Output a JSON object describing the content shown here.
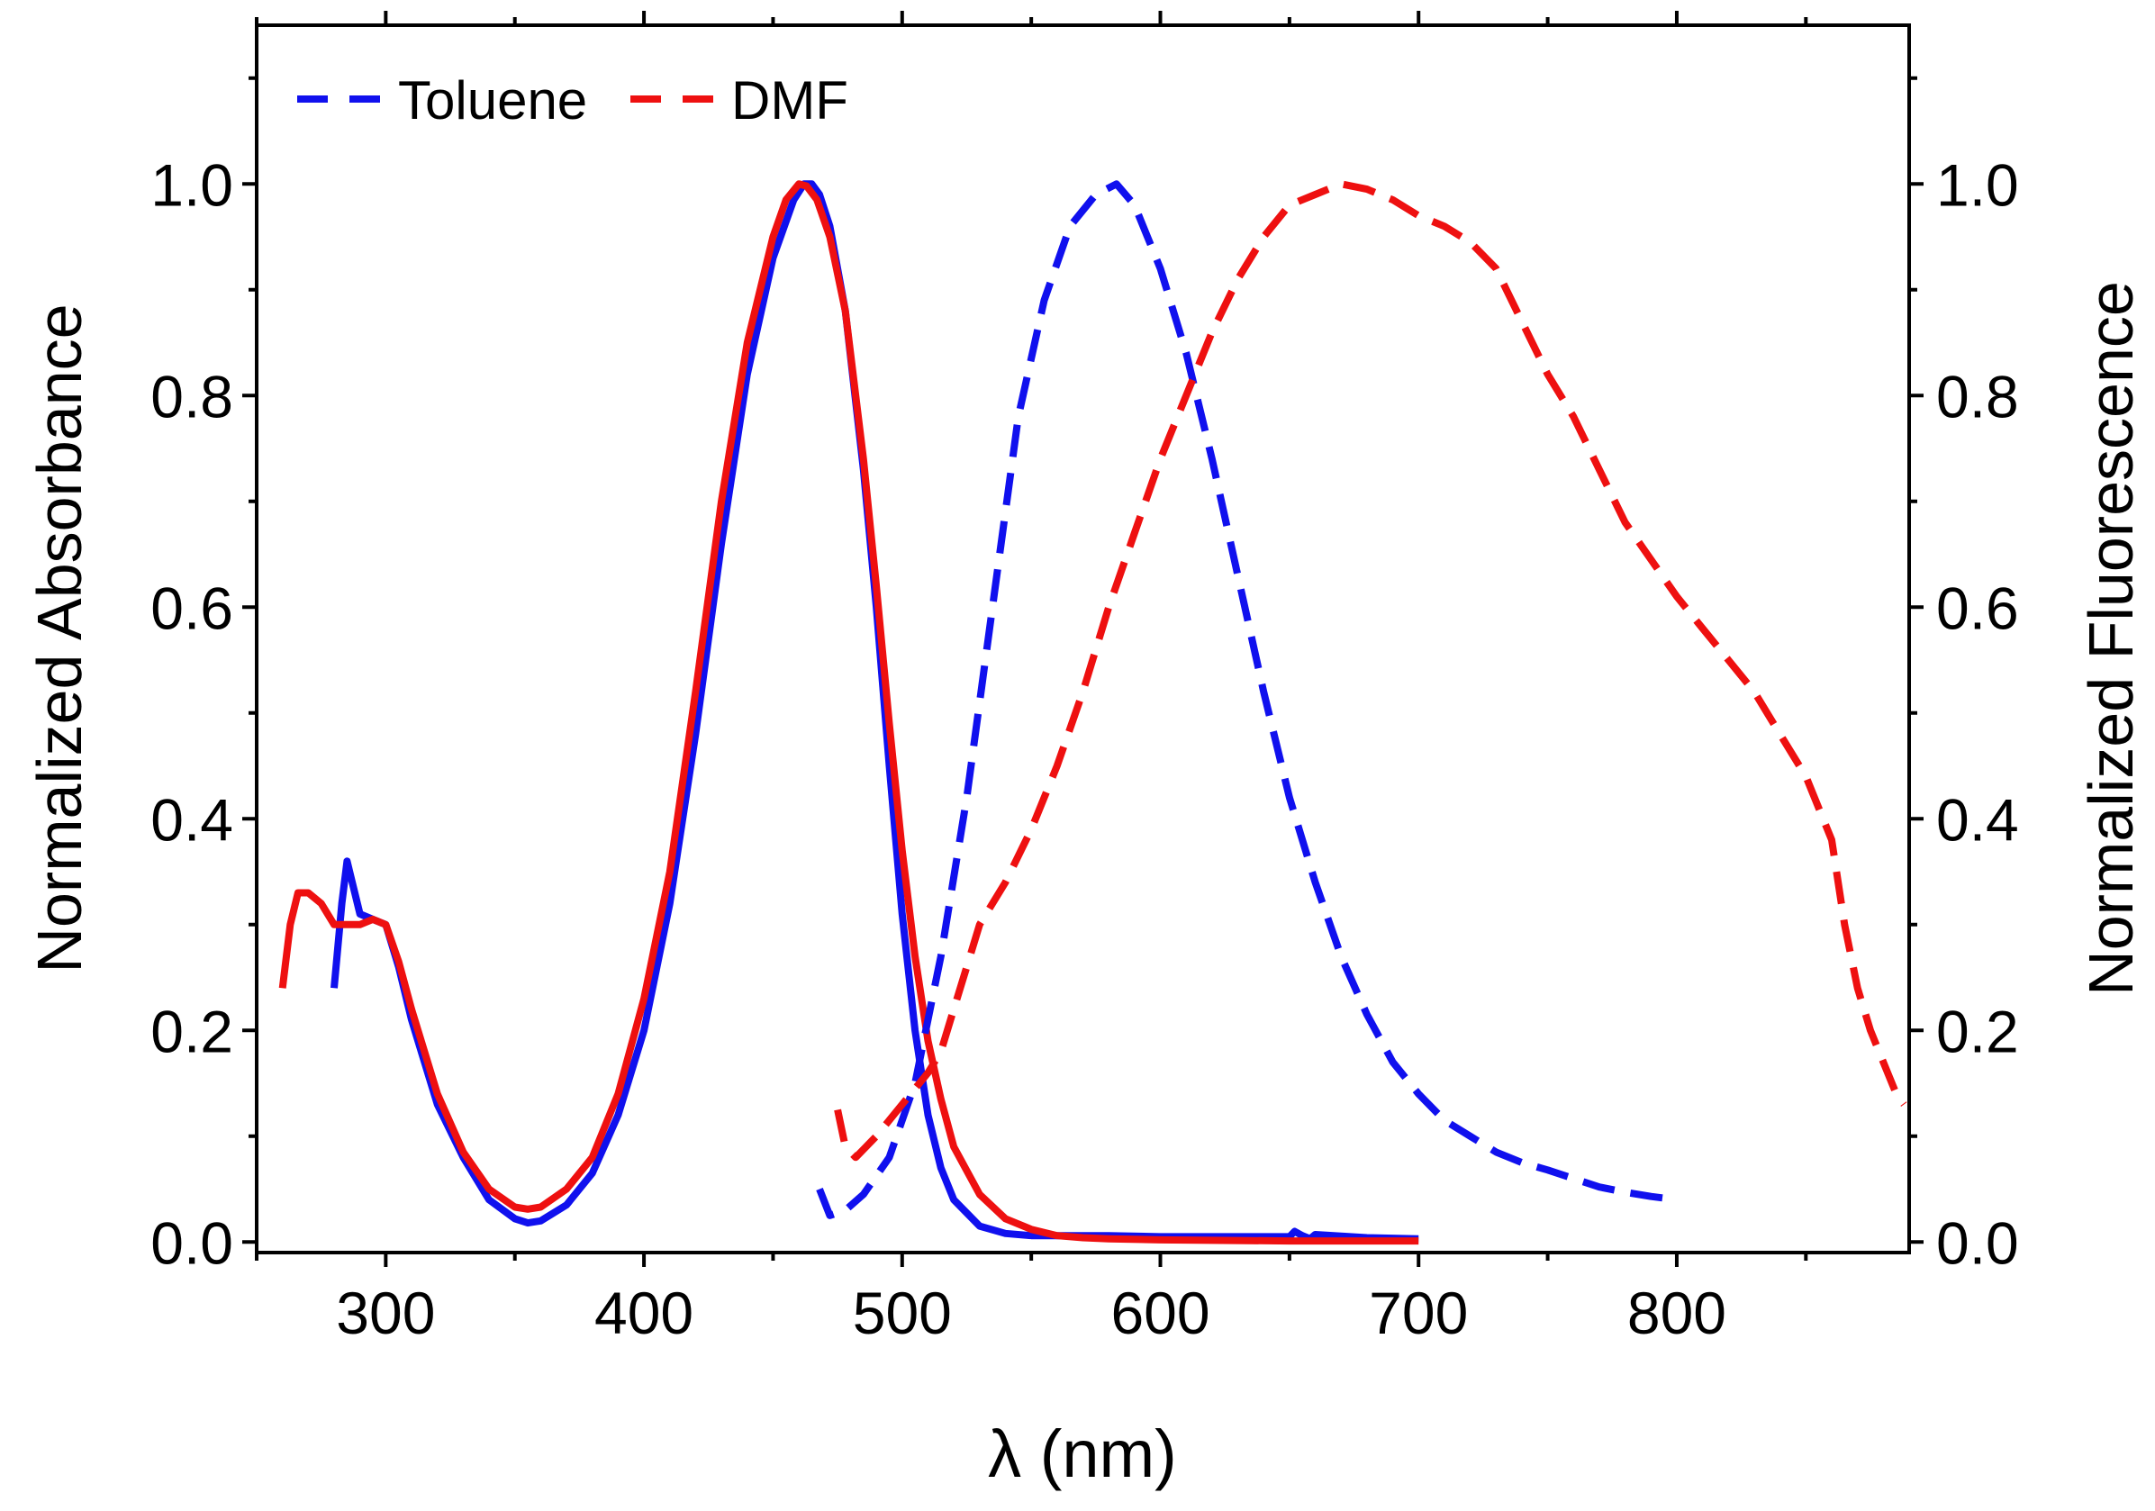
{
  "chart_data": {
    "type": "line",
    "title": "",
    "xlabel": "λ (nm)",
    "ylabel_left": "Normalized Absorbance",
    "ylabel_right": "Normalized Fluorescence",
    "xlim": [
      250,
      890
    ],
    "ylim": [
      -0.01,
      1.15
    ],
    "x_ticks": [
      300,
      400,
      500,
      600,
      700,
      800
    ],
    "y_ticks": [
      0.0,
      0.2,
      0.4,
      0.6,
      0.8,
      1.0
    ],
    "x_tick_labels": [
      "300",
      "400",
      "500",
      "600",
      "700",
      "800"
    ],
    "y_tick_labels_left": [
      "0.0",
      "0.2",
      "0.4",
      "0.6",
      "0.8",
      "1.0"
    ],
    "y_tick_labels_right": [
      "0.0",
      "0.2",
      "0.4",
      "0.6",
      "0.8",
      "1.0"
    ],
    "legend": {
      "position": "top-left",
      "entries": [
        {
          "label": "Toluene",
          "color": "#1010ee",
          "style": "dashed"
        },
        {
          "label": "DMF",
          "color": "#ee1010",
          "style": "dashed"
        }
      ]
    },
    "series": [
      {
        "name": "Toluene absorbance",
        "color": "#1010ee",
        "style": "solid",
        "axis": "left",
        "x": [
          280,
          283,
          285,
          287,
          290,
          295,
          300,
          305,
          310,
          320,
          330,
          340,
          350,
          355,
          360,
          370,
          380,
          390,
          400,
          410,
          420,
          430,
          440,
          450,
          458,
          462,
          465,
          468,
          472,
          478,
          485,
          490,
          495,
          500,
          505,
          510,
          515,
          520,
          530,
          540,
          550,
          560,
          580,
          600,
          620,
          650,
          652,
          655,
          658,
          660,
          680,
          700
        ],
        "y": [
          0.24,
          0.32,
          0.36,
          0.34,
          0.31,
          0.305,
          0.3,
          0.26,
          0.21,
          0.13,
          0.08,
          0.04,
          0.022,
          0.018,
          0.02,
          0.035,
          0.065,
          0.12,
          0.2,
          0.32,
          0.48,
          0.66,
          0.82,
          0.93,
          0.985,
          1.0,
          1.0,
          0.99,
          0.96,
          0.88,
          0.73,
          0.6,
          0.45,
          0.31,
          0.2,
          0.12,
          0.07,
          0.04,
          0.015,
          0.008,
          0.006,
          0.006,
          0.006,
          0.005,
          0.005,
          0.005,
          0.01,
          0.006,
          0.003,
          0.007,
          0.004,
          0.003
        ]
      },
      {
        "name": "DMF absorbance",
        "color": "#ee1010",
        "style": "solid",
        "axis": "left",
        "x": [
          260,
          263,
          266,
          270,
          275,
          280,
          290,
          295,
          300,
          305,
          310,
          320,
          330,
          340,
          350,
          355,
          360,
          370,
          380,
          390,
          400,
          410,
          420,
          430,
          440,
          450,
          455,
          460,
          463,
          467,
          472,
          478,
          485,
          490,
          495,
          500,
          505,
          510,
          515,
          520,
          530,
          540,
          550,
          560,
          570,
          580,
          600,
          650,
          700
        ],
        "y": [
          0.24,
          0.3,
          0.33,
          0.33,
          0.32,
          0.3,
          0.3,
          0.305,
          0.3,
          0.265,
          0.22,
          0.14,
          0.085,
          0.05,
          0.033,
          0.031,
          0.033,
          0.05,
          0.08,
          0.14,
          0.23,
          0.35,
          0.52,
          0.7,
          0.85,
          0.95,
          0.985,
          1.0,
          0.998,
          0.985,
          0.95,
          0.88,
          0.74,
          0.62,
          0.49,
          0.37,
          0.27,
          0.19,
          0.135,
          0.09,
          0.045,
          0.022,
          0.012,
          0.006,
          0.004,
          0.003,
          0.002,
          0.001,
          0.001
        ]
      },
      {
        "name": "Toluene fluorescence",
        "color": "#1010ee",
        "style": "dashed",
        "axis": "right",
        "x": [
          468,
          472,
          478,
          485,
          495,
          505,
          515,
          525,
          535,
          545,
          555,
          565,
          575,
          583,
          590,
          600,
          610,
          620,
          630,
          640,
          650,
          660,
          670,
          680,
          690,
          700,
          710,
          720,
          730,
          740,
          750,
          760,
          770,
          780,
          790,
          800
        ],
        "y": [
          0.05,
          0.025,
          0.03,
          0.045,
          0.08,
          0.15,
          0.27,
          0.42,
          0.6,
          0.78,
          0.89,
          0.96,
          0.99,
          1.0,
          0.98,
          0.92,
          0.84,
          0.74,
          0.63,
          0.52,
          0.42,
          0.34,
          0.27,
          0.215,
          0.17,
          0.14,
          0.115,
          0.1,
          0.085,
          0.075,
          0.068,
          0.06,
          0.052,
          0.047,
          0.043,
          0.04
        ]
      },
      {
        "name": "DMF fluorescence",
        "color": "#ee1010",
        "style": "dashed",
        "axis": "right",
        "x": [
          475,
          478,
          482,
          490,
          500,
          510,
          515,
          520,
          525,
          530,
          540,
          550,
          560,
          570,
          580,
          590,
          600,
          610,
          620,
          630,
          640,
          650,
          660,
          670,
          680,
          690,
          700,
          710,
          720,
          730,
          740,
          750,
          760,
          770,
          780,
          790,
          800,
          810,
          820,
          830,
          840,
          850,
          860,
          865,
          870,
          875,
          880,
          885,
          888
        ],
        "y": [
          0.125,
          0.09,
          0.08,
          0.1,
          0.13,
          0.16,
          0.18,
          0.22,
          0.26,
          0.3,
          0.34,
          0.39,
          0.45,
          0.52,
          0.6,
          0.67,
          0.74,
          0.8,
          0.86,
          0.91,
          0.95,
          0.98,
          0.99,
          1.0,
          0.995,
          0.985,
          0.97,
          0.96,
          0.945,
          0.92,
          0.87,
          0.82,
          0.78,
          0.73,
          0.68,
          0.645,
          0.61,
          0.58,
          0.55,
          0.52,
          0.48,
          0.44,
          0.38,
          0.3,
          0.24,
          0.2,
          0.17,
          0.14,
          0.13
        ]
      }
    ]
  }
}
